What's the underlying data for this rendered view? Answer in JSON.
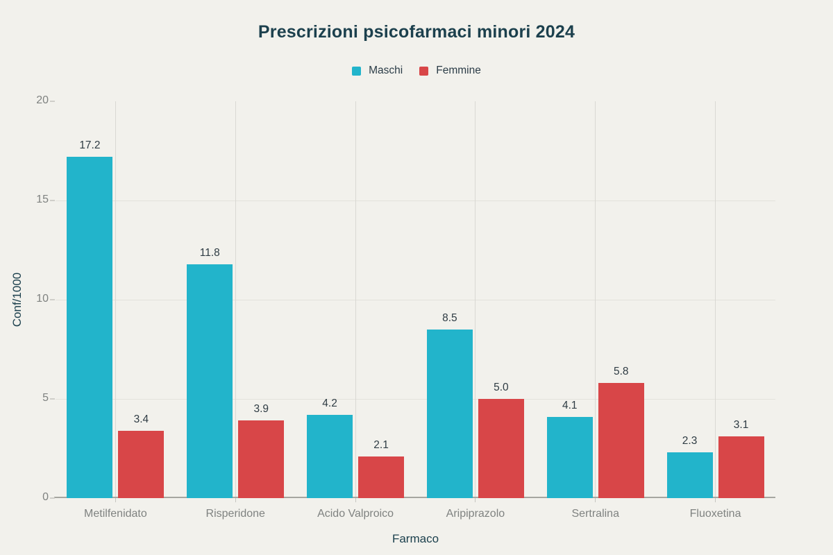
{
  "chart_data": {
    "type": "bar",
    "title": "Prescrizioni psicofarmaci minori 2024",
    "xlabel": "Farmaco",
    "ylabel": "Conf/1000",
    "categories": [
      "Metilfenidato",
      "Risperidone",
      "Acido Valproico",
      "Aripiprazolo",
      "Sertralina",
      "Fluoxetina"
    ],
    "series": [
      {
        "name": "Maschi",
        "color": "#22b4cb",
        "values": [
          17.2,
          11.8,
          4.2,
          8.5,
          4.1,
          2.3
        ]
      },
      {
        "name": "Femmine",
        "color": "#d84648",
        "values": [
          3.4,
          3.9,
          2.1,
          5.0,
          5.8,
          3.1
        ]
      }
    ],
    "ylim": [
      0,
      20
    ],
    "yticks": [
      0,
      5,
      10,
      15,
      20
    ],
    "ygridlines": [
      5,
      10,
      15
    ],
    "legend_position": "top-center",
    "grid": "horizontal and vertical category gridlines",
    "value_labels": "one decimal above each bar"
  },
  "colors": {
    "background": "#f2f1ec",
    "maschi": "#22b4cb",
    "femmine": "#d84648",
    "title_text": "#1c404d",
    "tick_text": "#7f8280",
    "value_text": "#2e3b43",
    "axis_line": "#a6a6a0",
    "hgrid": "#e3e2dc",
    "vgrid": "#d9d8d3"
  }
}
